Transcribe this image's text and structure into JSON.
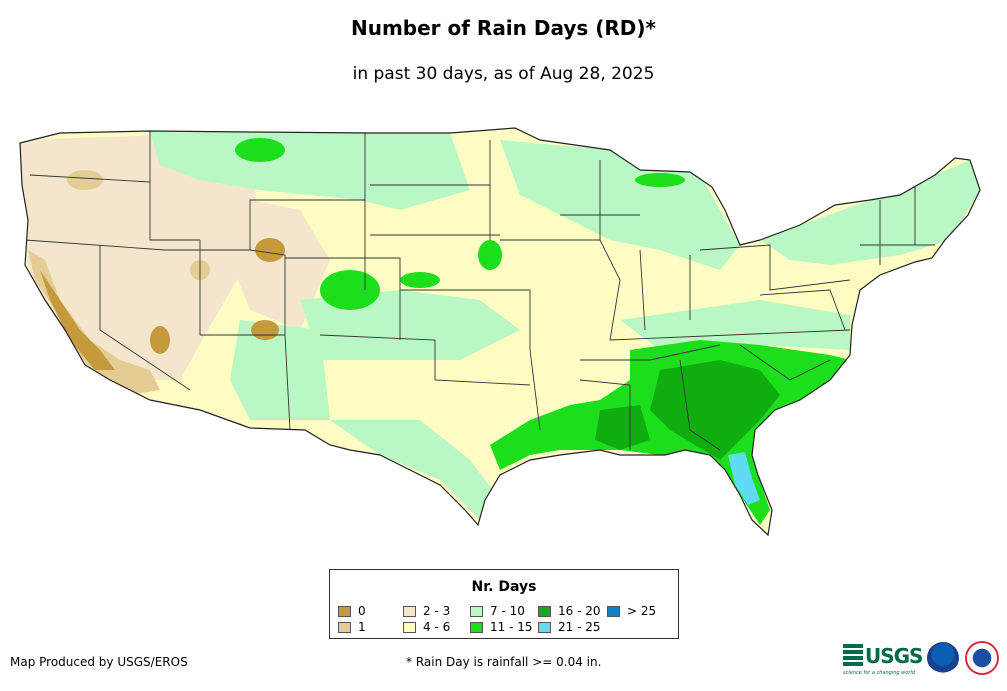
{
  "title": "Number of Rain Days (RD)*",
  "subtitle": "in past 30 days, as of Aug 28, 2025",
  "legend": {
    "title": "Nr. Days",
    "items": [
      {
        "label": "0",
        "color": "#c49a3c"
      },
      {
        "label": "1",
        "color": "#e3cd92"
      },
      {
        "label": "2 - 3",
        "color": "#f3e6cc"
      },
      {
        "label": "4 - 6",
        "color": "#fdfcc3"
      },
      {
        "label": "7 - 10",
        "color": "#b9f7c4"
      },
      {
        "label": "11 - 15",
        "color": "#1dde1d"
      },
      {
        "label": "16 - 20",
        "color": "#0fad0f"
      },
      {
        "label": "21 - 25",
        "color": "#5fdcf2"
      },
      {
        "label": "> 25",
        "color": "#0f7fc6"
      }
    ]
  },
  "credit": "Map Produced by USGS/EROS",
  "footnote": "* Rain Day is rainfall >= 0.04 in.",
  "logos": {
    "usgs": "USGS",
    "usgs_tagline": "science for a changing world"
  }
}
